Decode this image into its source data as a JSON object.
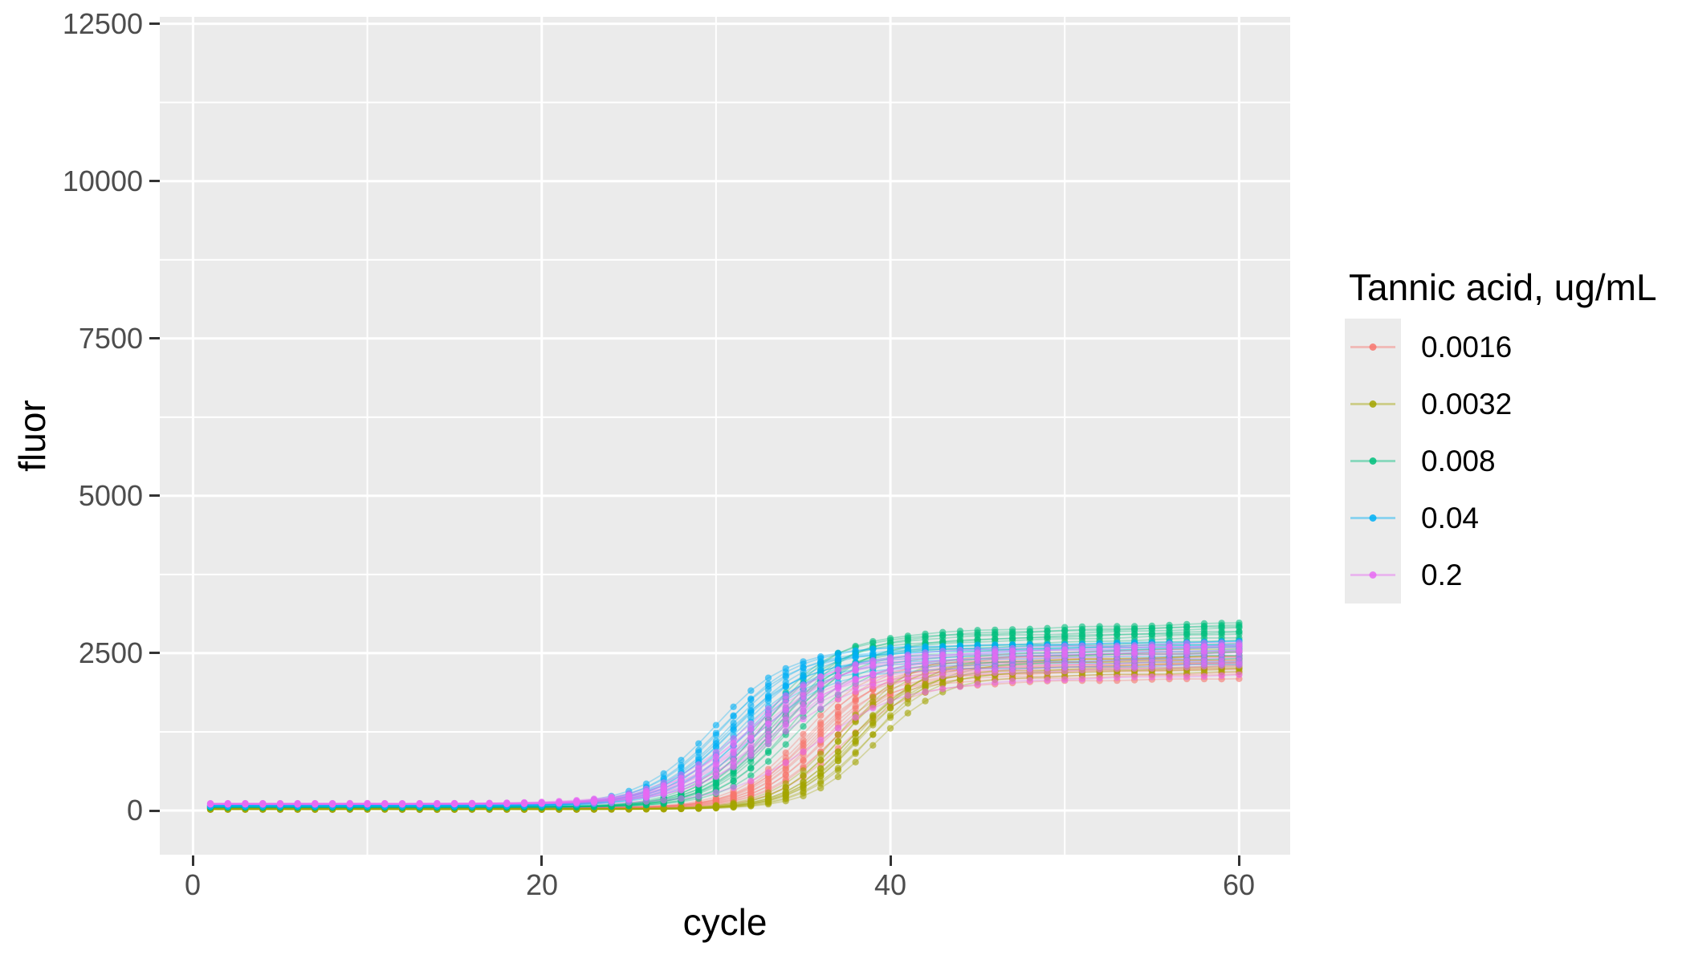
{
  "chart_data": {
    "type": "line",
    "title": "",
    "xlabel": "cycle",
    "ylabel": "fluor",
    "legend_title": "Tannic acid, ug/mL",
    "legend_position": "right",
    "grid": "on",
    "panel_bg": "#EBEBEB",
    "grid_color": "#FFFFFF",
    "tick_mark_color": "#333333",
    "tick_label_color": "#4D4D4D",
    "text_color": "#000000",
    "x_ticks": [
      0,
      20,
      40,
      60
    ],
    "x_minor_ticks": [
      10,
      30,
      50
    ],
    "y_ticks": [
      0,
      2500,
      5000,
      7500,
      10000,
      12500
    ],
    "y_minor_ticks": [
      1250,
      3750,
      6250,
      8750,
      11250
    ],
    "xlim": [
      -1.9,
      63
    ],
    "ylim": [
      -700,
      12615
    ],
    "cycles": [
      1,
      60
    ],
    "model": "fluor(cycle) = base + plateau/(1+exp(-k*(cycle-mid))) + drift*max(0,cycle-mid) + small well-to-well oscillation; one trace per replicate well, ~12 replicate wells per tannic-acid concentration",
    "series": [
      {
        "name": "0.0016",
        "color": "#F8766D",
        "base": 40,
        "plateau": 2150,
        "mid": 35.7,
        "k": 0.52,
        "drift": 5,
        "replicates": [
          [
            -0.8,
            120,
            6
          ],
          [
            -0.6,
            55,
            -4
          ],
          [
            -0.45,
            -30,
            3
          ],
          [
            -0.3,
            150,
            -6
          ],
          [
            -0.15,
            20,
            8
          ],
          [
            0,
            -70,
            -2
          ],
          [
            0.15,
            90,
            4
          ],
          [
            0.3,
            -110,
            -8
          ],
          [
            0.5,
            40,
            2
          ],
          [
            0.7,
            -150,
            5
          ],
          [
            0.9,
            -45,
            -5
          ],
          [
            1.4,
            -200,
            0
          ]
        ]
      },
      {
        "name": "0.0032",
        "color": "#A3A500",
        "base": 22,
        "plateau": 2230,
        "mid": 38.0,
        "k": 0.53,
        "drift": 5,
        "replicates": [
          [
            -1.0,
            140,
            4
          ],
          [
            -0.75,
            80,
            -3
          ],
          [
            -0.55,
            200,
            6
          ],
          [
            -0.4,
            -60,
            -5
          ],
          [
            -0.25,
            30,
            2
          ],
          [
            -0.1,
            -120,
            7
          ],
          [
            0.05,
            100,
            -6
          ],
          [
            0.2,
            -30,
            3
          ],
          [
            0.4,
            160,
            -2
          ],
          [
            0.6,
            -90,
            5
          ],
          [
            0.85,
            60,
            -4
          ],
          [
            1.1,
            -160,
            1
          ]
        ]
      },
      {
        "name": "0.008",
        "color": "#00BF7D",
        "base": 55,
        "plateau": 2480,
        "mid": 33.4,
        "k": 0.5,
        "drift": 8,
        "replicates": [
          [
            -0.9,
            170,
            5
          ],
          [
            -0.7,
            90,
            -5
          ],
          [
            -0.5,
            230,
            2
          ],
          [
            -0.35,
            -40,
            -3
          ],
          [
            -0.2,
            140,
            6
          ],
          [
            -0.05,
            10,
            -7
          ],
          [
            0.1,
            -90,
            4
          ],
          [
            0.25,
            200,
            -2
          ],
          [
            0.45,
            60,
            3
          ],
          [
            0.65,
            -140,
            -6
          ],
          [
            0.9,
            110,
            2
          ],
          [
            1.15,
            -190,
            -1
          ]
        ]
      },
      {
        "name": "0.04",
        "color": "#00B0F6",
        "base": 75,
        "plateau": 2330,
        "mid": 31.0,
        "k": 0.47,
        "drift": 4,
        "replicates": [
          [
            -1.1,
            150,
            7
          ],
          [
            -0.85,
            70,
            -4
          ],
          [
            -0.6,
            160,
            3
          ],
          [
            -0.45,
            -50,
            -6
          ],
          [
            -0.3,
            120,
            5
          ],
          [
            -0.15,
            -10,
            -3
          ],
          [
            0,
            100,
            6
          ],
          [
            0.15,
            -100,
            -5
          ],
          [
            0.35,
            90,
            2
          ],
          [
            0.55,
            -150,
            4
          ],
          [
            0.8,
            40,
            -7
          ],
          [
            1.05,
            -200,
            1
          ]
        ]
      },
      {
        "name": "0.2",
        "color": "#E76BF3",
        "base": 105,
        "plateau": 2180,
        "mid": 32.4,
        "k": 0.4,
        "drift": 7,
        "replicates": [
          [
            -0.9,
            130,
            6
          ],
          [
            -0.65,
            60,
            -5
          ],
          [
            -0.45,
            190,
            3
          ],
          [
            -0.3,
            -40,
            -4
          ],
          [
            -0.15,
            100,
            7
          ],
          [
            0,
            -90,
            -2
          ],
          [
            0.2,
            150,
            4
          ],
          [
            0.4,
            -130,
            -6
          ],
          [
            0.6,
            30,
            2
          ],
          [
            0.85,
            -180,
            5
          ],
          [
            1.1,
            80,
            -3
          ],
          [
            3.2,
            -300,
            0
          ]
        ]
      }
    ]
  }
}
